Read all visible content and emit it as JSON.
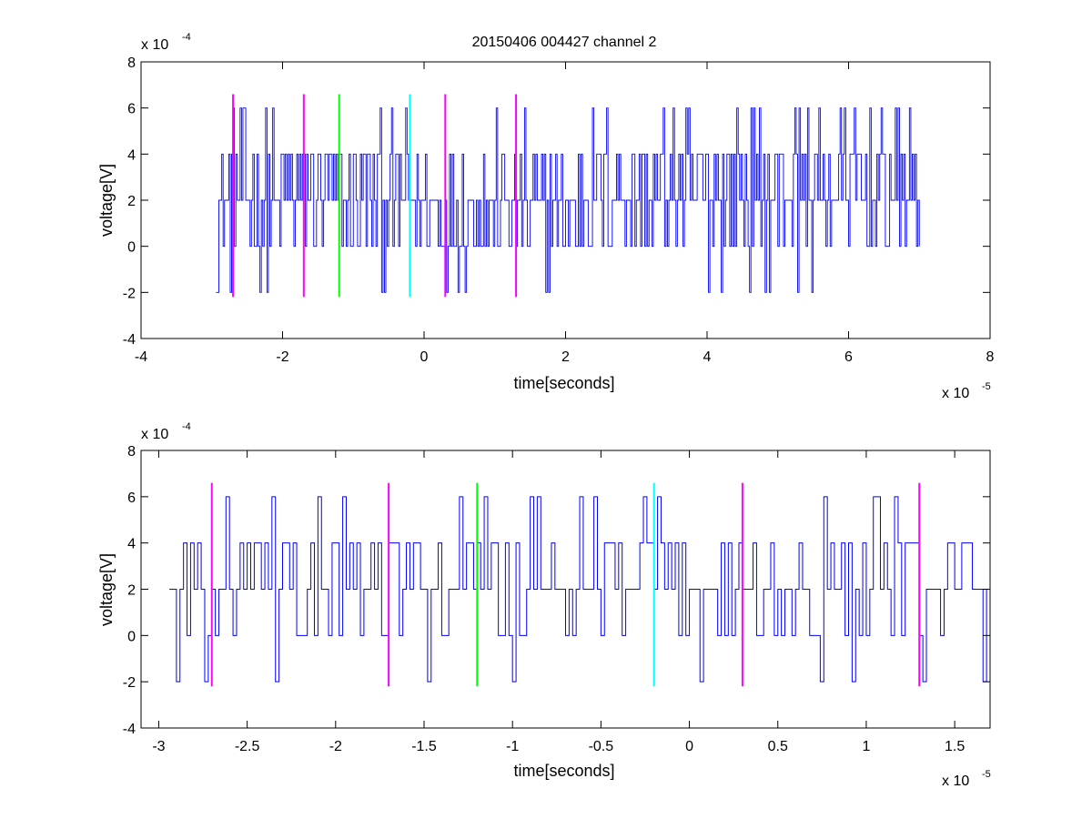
{
  "chart_data": [
    {
      "type": "line",
      "title": "20150406 004427 channel 2",
      "xlabel": "time[seconds]",
      "ylabel": "voltage[V]",
      "x_multiplier": "x 10",
      "x_exponent": "-5",
      "y_multiplier": "x 10",
      "y_exponent": "-4",
      "xlim": [
        -4,
        8
      ],
      "ylim": [
        -4,
        8
      ],
      "xticks": [
        -4,
        -2,
        0,
        2,
        4,
        6,
        8
      ],
      "yticks": [
        -4,
        -2,
        0,
        2,
        4,
        6,
        8
      ],
      "xtick_labels": [
        "-4",
        "-2",
        "0",
        "2",
        "4",
        "6",
        "8"
      ],
      "ytick_labels": [
        "-4",
        "-2",
        "0",
        "2",
        "4",
        "6",
        "8"
      ],
      "grid": false,
      "signal_color": "#0000ff",
      "signal": {
        "x_start": -2.94,
        "x_end": 7.0,
        "levels": [
          -2,
          0,
          2,
          4,
          6
        ],
        "note_levels_unit": "x 10^-4 V",
        "segments": [
          {
            "from": -2.94,
            "to": -0.2,
            "weights": [
              0.05,
              0.27,
              0.35,
              0.27,
              0.06
            ]
          },
          {
            "from": -0.2,
            "to": 2.2,
            "weights": [
              0.07,
              0.3,
              0.4,
              0.2,
              0.03
            ]
          },
          {
            "from": 2.2,
            "to": 7.0,
            "weights": [
              0.03,
              0.2,
              0.37,
              0.32,
              0.08
            ]
          }
        ]
      },
      "markers": [
        {
          "x": -2.7,
          "ymin": -2.2,
          "ymax": 6.6,
          "color": "#ff00ff"
        },
        {
          "x": -1.7,
          "ymin": -2.2,
          "ymax": 6.6,
          "color": "#ff00ff"
        },
        {
          "x": -1.2,
          "ymin": -2.2,
          "ymax": 6.6,
          "color": "#00ff00"
        },
        {
          "x": -0.2,
          "ymin": -2.2,
          "ymax": 6.6,
          "color": "#00ffff"
        },
        {
          "x": 0.3,
          "ymin": -2.2,
          "ymax": 6.6,
          "color": "#ff00ff"
        },
        {
          "x": 1.3,
          "ymin": -2.2,
          "ymax": 6.6,
          "color": "#ff00ff"
        }
      ]
    },
    {
      "type": "line",
      "title": "",
      "xlabel": "time[seconds]",
      "ylabel": "voltage[V]",
      "x_multiplier": "x 10",
      "x_exponent": "-5",
      "y_multiplier": "x 10",
      "y_exponent": "-4",
      "xlim": [
        -3.1,
        1.7
      ],
      "ylim": [
        -4,
        8
      ],
      "xticks": [
        -3,
        -2.5,
        -2,
        -1.5,
        -1,
        -0.5,
        0,
        0.5,
        1,
        1.5
      ],
      "yticks": [
        -4,
        -2,
        0,
        2,
        4,
        6,
        8
      ],
      "xtick_labels": [
        "-3",
        "-2.5",
        "-2",
        "-1.5",
        "-1",
        "-0.5",
        "0",
        "0.5",
        "1",
        "1.5"
      ],
      "ytick_labels": [
        "-4",
        "-2",
        "0",
        "2",
        "4",
        "6",
        "8"
      ],
      "grid": false,
      "signal_color": "#0000ff",
      "signal": {
        "x_start": -2.94,
        "x_end": 1.7,
        "levels": [
          -2,
          0,
          2,
          4,
          6
        ],
        "note_levels_unit": "x 10^-4 V",
        "segments": [
          {
            "from": -2.94,
            "to": 1.7,
            "weights": [
              0.05,
              0.25,
              0.4,
              0.25,
              0.05
            ]
          }
        ]
      },
      "markers": [
        {
          "x": -2.7,
          "ymin": -2.2,
          "ymax": 6.6,
          "color": "#ff00ff"
        },
        {
          "x": -1.7,
          "ymin": -2.2,
          "ymax": 6.6,
          "color": "#ff00ff"
        },
        {
          "x": -1.2,
          "ymin": -2.2,
          "ymax": 6.6,
          "color": "#00ff00"
        },
        {
          "x": -0.2,
          "ymin": -2.2,
          "ymax": 6.6,
          "color": "#00ffff"
        },
        {
          "x": 0.3,
          "ymin": -2.2,
          "ymax": 6.6,
          "color": "#ff00ff"
        },
        {
          "x": 1.3,
          "ymin": -2.2,
          "ymax": 6.6,
          "color": "#ff00ff"
        }
      ]
    }
  ]
}
